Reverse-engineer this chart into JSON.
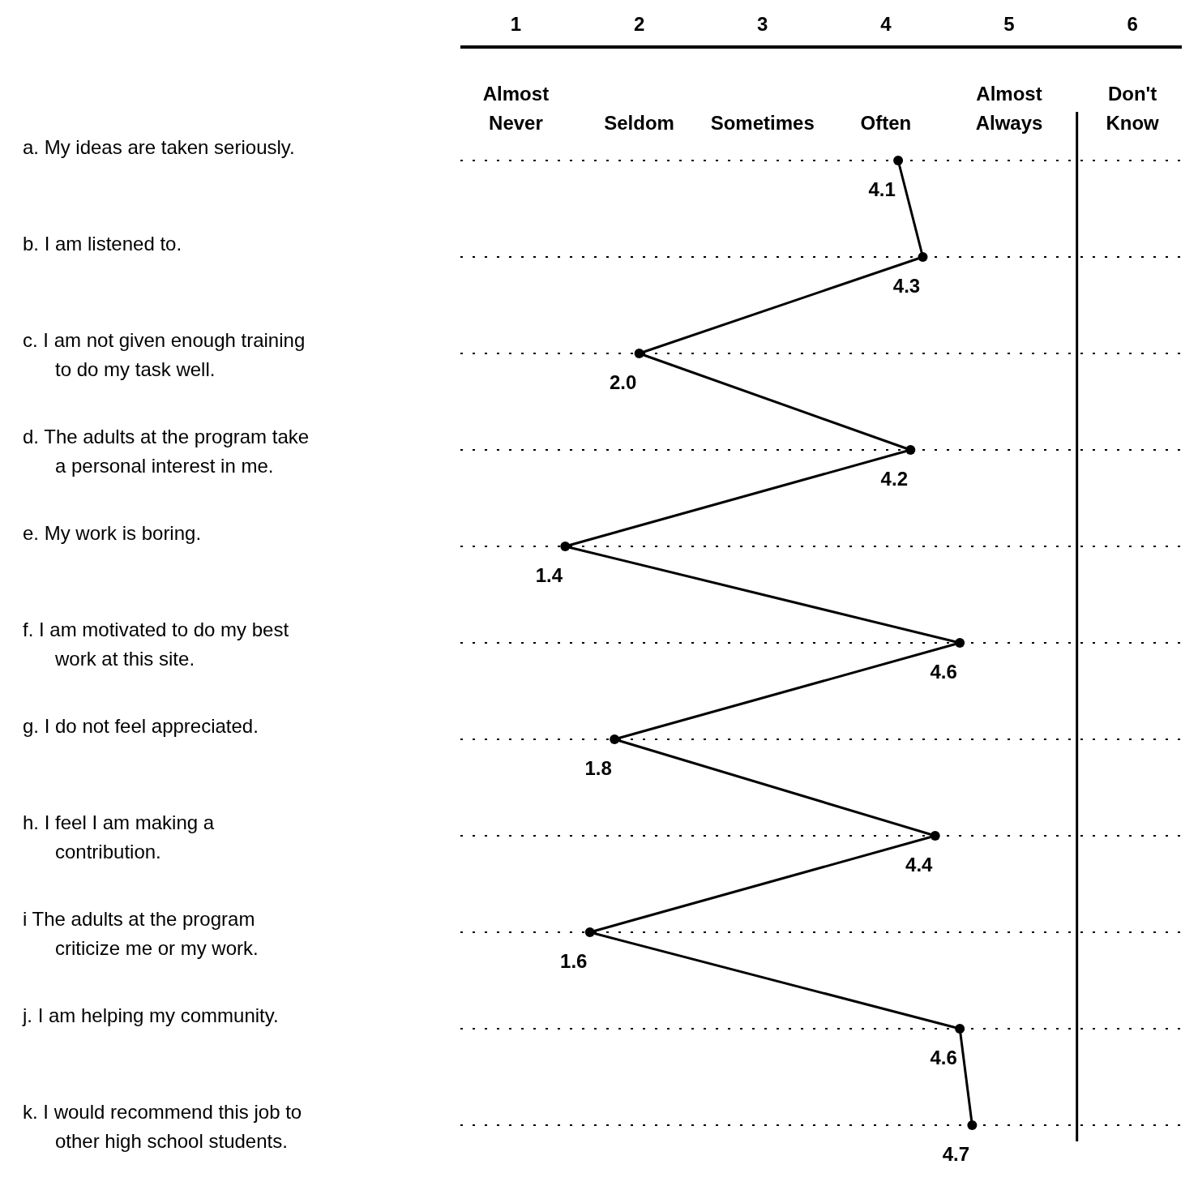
{
  "chart_data": {
    "type": "line",
    "orientation": "horizontal",
    "categories": [
      "a. My ideas are taken seriously.",
      "b. I am listened to.",
      "c. I am not given enough training to do my task well.",
      "d. The adults at the program take a personal interest in me.",
      "e. My work is boring.",
      "f. I am motivated to do my best work at this site.",
      "g. I do not feel appreciated.",
      "h. I feel I am making a contribution.",
      "i The adults at the program criticize me or my work.",
      "j. I am helping my community.",
      "k. I would recommend this job to other high school students."
    ],
    "series": [
      {
        "color": "#000000",
        "values": [
          4.1,
          4.3,
          2.0,
          4.2,
          1.4,
          4.6,
          1.8,
          4.4,
          1.6,
          4.6,
          4.7
        ]
      }
    ],
    "value_labels": [
      "4.1",
      "4.3",
      "2.0",
      "4.2",
      "1.4",
      "4.6",
      "1.8",
      "4.4",
      "1.6",
      "4.6",
      "4.7"
    ],
    "xlim": [
      0.55,
      6.4
    ],
    "xticks": [
      1,
      2,
      3,
      4,
      5,
      6
    ],
    "annotations": [
      "Almost Never",
      "Seldom",
      "Sometimes",
      "Often",
      "Almost Always",
      "Don't Know"
    ],
    "legend": false,
    "ref_lines": [
      {
        "axis": "x",
        "value": 5.55,
        "label": null,
        "color": "#000000"
      }
    ],
    "grid": "y",
    "marker": "circle",
    "line_style": "solid"
  }
}
